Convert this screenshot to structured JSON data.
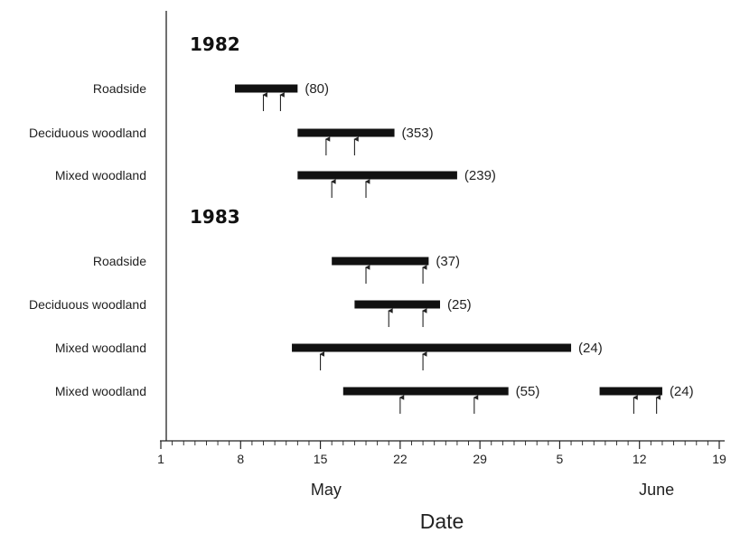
{
  "chart_data": {
    "type": "bar",
    "subtype": "gantt-range",
    "xlabel": "Date",
    "x_axis": {
      "ticks": [
        {
          "day": 1,
          "label": "1"
        },
        {
          "day": 8,
          "label": "8"
        },
        {
          "day": 15,
          "label": "15"
        },
        {
          "day": 22,
          "label": "22"
        },
        {
          "day": 29,
          "label": "29"
        },
        {
          "day": 36,
          "label": "5"
        },
        {
          "day": 43,
          "label": "12"
        },
        {
          "day": 50,
          "label": "19"
        }
      ],
      "months": [
        {
          "label": "May",
          "day": 15.5
        },
        {
          "label": "June",
          "day": 44.5
        }
      ],
      "xlim": [
        1,
        50
      ],
      "units": "day counted from 1 May (May 1 = 1, June 1 = 32)"
    },
    "groups": [
      {
        "year": "1982",
        "rows": [
          {
            "category": "Roadside",
            "start": 7.5,
            "end": 13,
            "n": "(80)",
            "arrows": [
              10,
              11.5
            ]
          },
          {
            "category": "Deciduous woodland",
            "start": 13,
            "end": 21.5,
            "n": "(353)",
            "arrows": [
              15.5,
              18
            ]
          },
          {
            "category": "Mixed woodland",
            "start": 13,
            "end": 27,
            "n": "(239)",
            "arrows": [
              16,
              19
            ]
          }
        ]
      },
      {
        "year": "1983",
        "rows": [
          {
            "category": "Roadside",
            "start": 16,
            "end": 24.5,
            "n": "(37)",
            "arrows": [
              19,
              24
            ]
          },
          {
            "category": "Deciduous woodland",
            "start": 18,
            "end": 25.5,
            "n": "(25)",
            "arrows": [
              21,
              24
            ]
          },
          {
            "category": "Mixed woodland",
            "start": 12.5,
            "end": 37,
            "n": "(24)",
            "arrows": [
              15,
              24
            ]
          },
          {
            "category": "Mixed woodland",
            "start": 17,
            "end": 31.5,
            "n": "(55)",
            "arrows": [
              22,
              28.5
            ]
          },
          {
            "category": "",
            "start": 39.5,
            "end": 45,
            "n": "(24)",
            "arrows": [
              42.5,
              44.5
            ]
          }
        ]
      }
    ]
  }
}
